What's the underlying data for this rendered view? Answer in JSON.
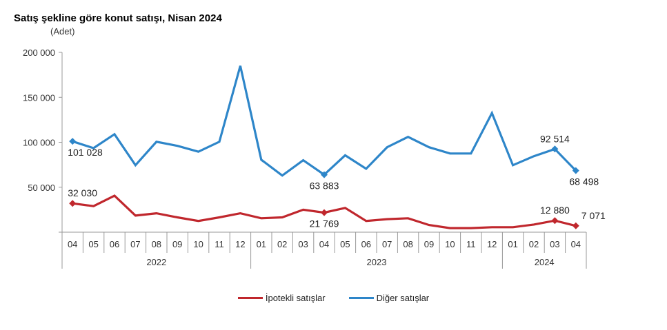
{
  "chart_data": {
    "type": "line",
    "title": "Satış şekline göre konut satışı, Nisan 2024",
    "unit_label": "(Adet)",
    "xlabel": "",
    "ylabel": "",
    "ylim": [
      0,
      200000
    ],
    "y_ticks": [
      0,
      50000,
      100000,
      150000,
      200000
    ],
    "y_tick_labels": [
      "",
      "50 000",
      "100 000",
      "150 000",
      "200 000"
    ],
    "grid": false,
    "legend_position": "bottom-center",
    "categories": [
      "04",
      "05",
      "06",
      "07",
      "08",
      "09",
      "10",
      "11",
      "12",
      "01",
      "02",
      "03",
      "04",
      "05",
      "06",
      "07",
      "08",
      "09",
      "10",
      "11",
      "12",
      "01",
      "02",
      "03",
      "04"
    ],
    "year_groups": [
      {
        "label": "2022",
        "count": 9
      },
      {
        "label": "2023",
        "count": 12
      },
      {
        "label": "2024",
        "count": 4
      }
    ],
    "series": [
      {
        "name": "İpotekli satışlar",
        "color": "#c0272d",
        "values": [
          32030,
          29000,
          40500,
          18500,
          21000,
          16500,
          12500,
          16500,
          21000,
          15500,
          16500,
          25000,
          21769,
          27000,
          12500,
          14500,
          15500,
          8000,
          4500,
          4500,
          5500,
          5500,
          8500,
          12880,
          7071
        ],
        "labels": [
          {
            "index": 0,
            "text": "32 030",
            "pos": "above"
          },
          {
            "index": 12,
            "text": "21 769",
            "pos": "below"
          },
          {
            "index": 23,
            "text": "12 880",
            "pos": "above"
          },
          {
            "index": 24,
            "text": "7 071",
            "pos": "above-right"
          }
        ]
      },
      {
        "name": "Diğer satışlar",
        "color": "#2e86c9",
        "values": [
          101028,
          93500,
          109000,
          74500,
          100500,
          96000,
          89500,
          100500,
          185000,
          80500,
          63000,
          80000,
          63883,
          85500,
          70500,
          94500,
          106000,
          94500,
          87500,
          87500,
          132500,
          74500,
          84500,
          92514,
          68498
        ],
        "labels": [
          {
            "index": 0,
            "text": "101 028",
            "pos": "below"
          },
          {
            "index": 12,
            "text": "63 883",
            "pos": "below"
          },
          {
            "index": 23,
            "text": "92 514",
            "pos": "above"
          },
          {
            "index": 24,
            "text": "68 498",
            "pos": "below"
          }
        ]
      }
    ]
  }
}
